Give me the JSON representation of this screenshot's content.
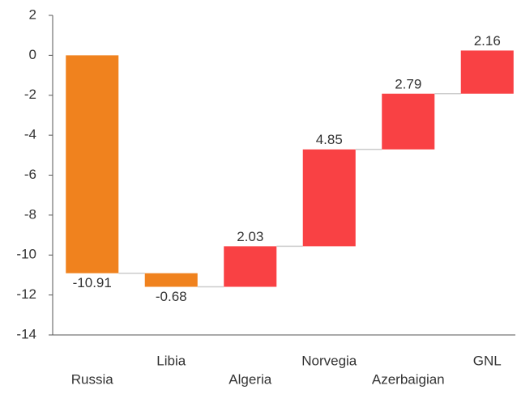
{
  "chart_data": {
    "type": "waterfall",
    "categories": [
      "Russia",
      "Libia",
      "Algeria",
      "Norvegia",
      "Azerbaigian",
      "GNL"
    ],
    "values": [
      -10.91,
      -0.68,
      2.03,
      4.85,
      2.79,
      2.16
    ],
    "negative_color": "#f0821e",
    "positive_color": "#f94144",
    "ylim": [
      -14,
      2
    ],
    "yticks": [
      2,
      0,
      -2,
      -4,
      -6,
      -8,
      -10,
      -12,
      -14
    ],
    "grid": false
  }
}
